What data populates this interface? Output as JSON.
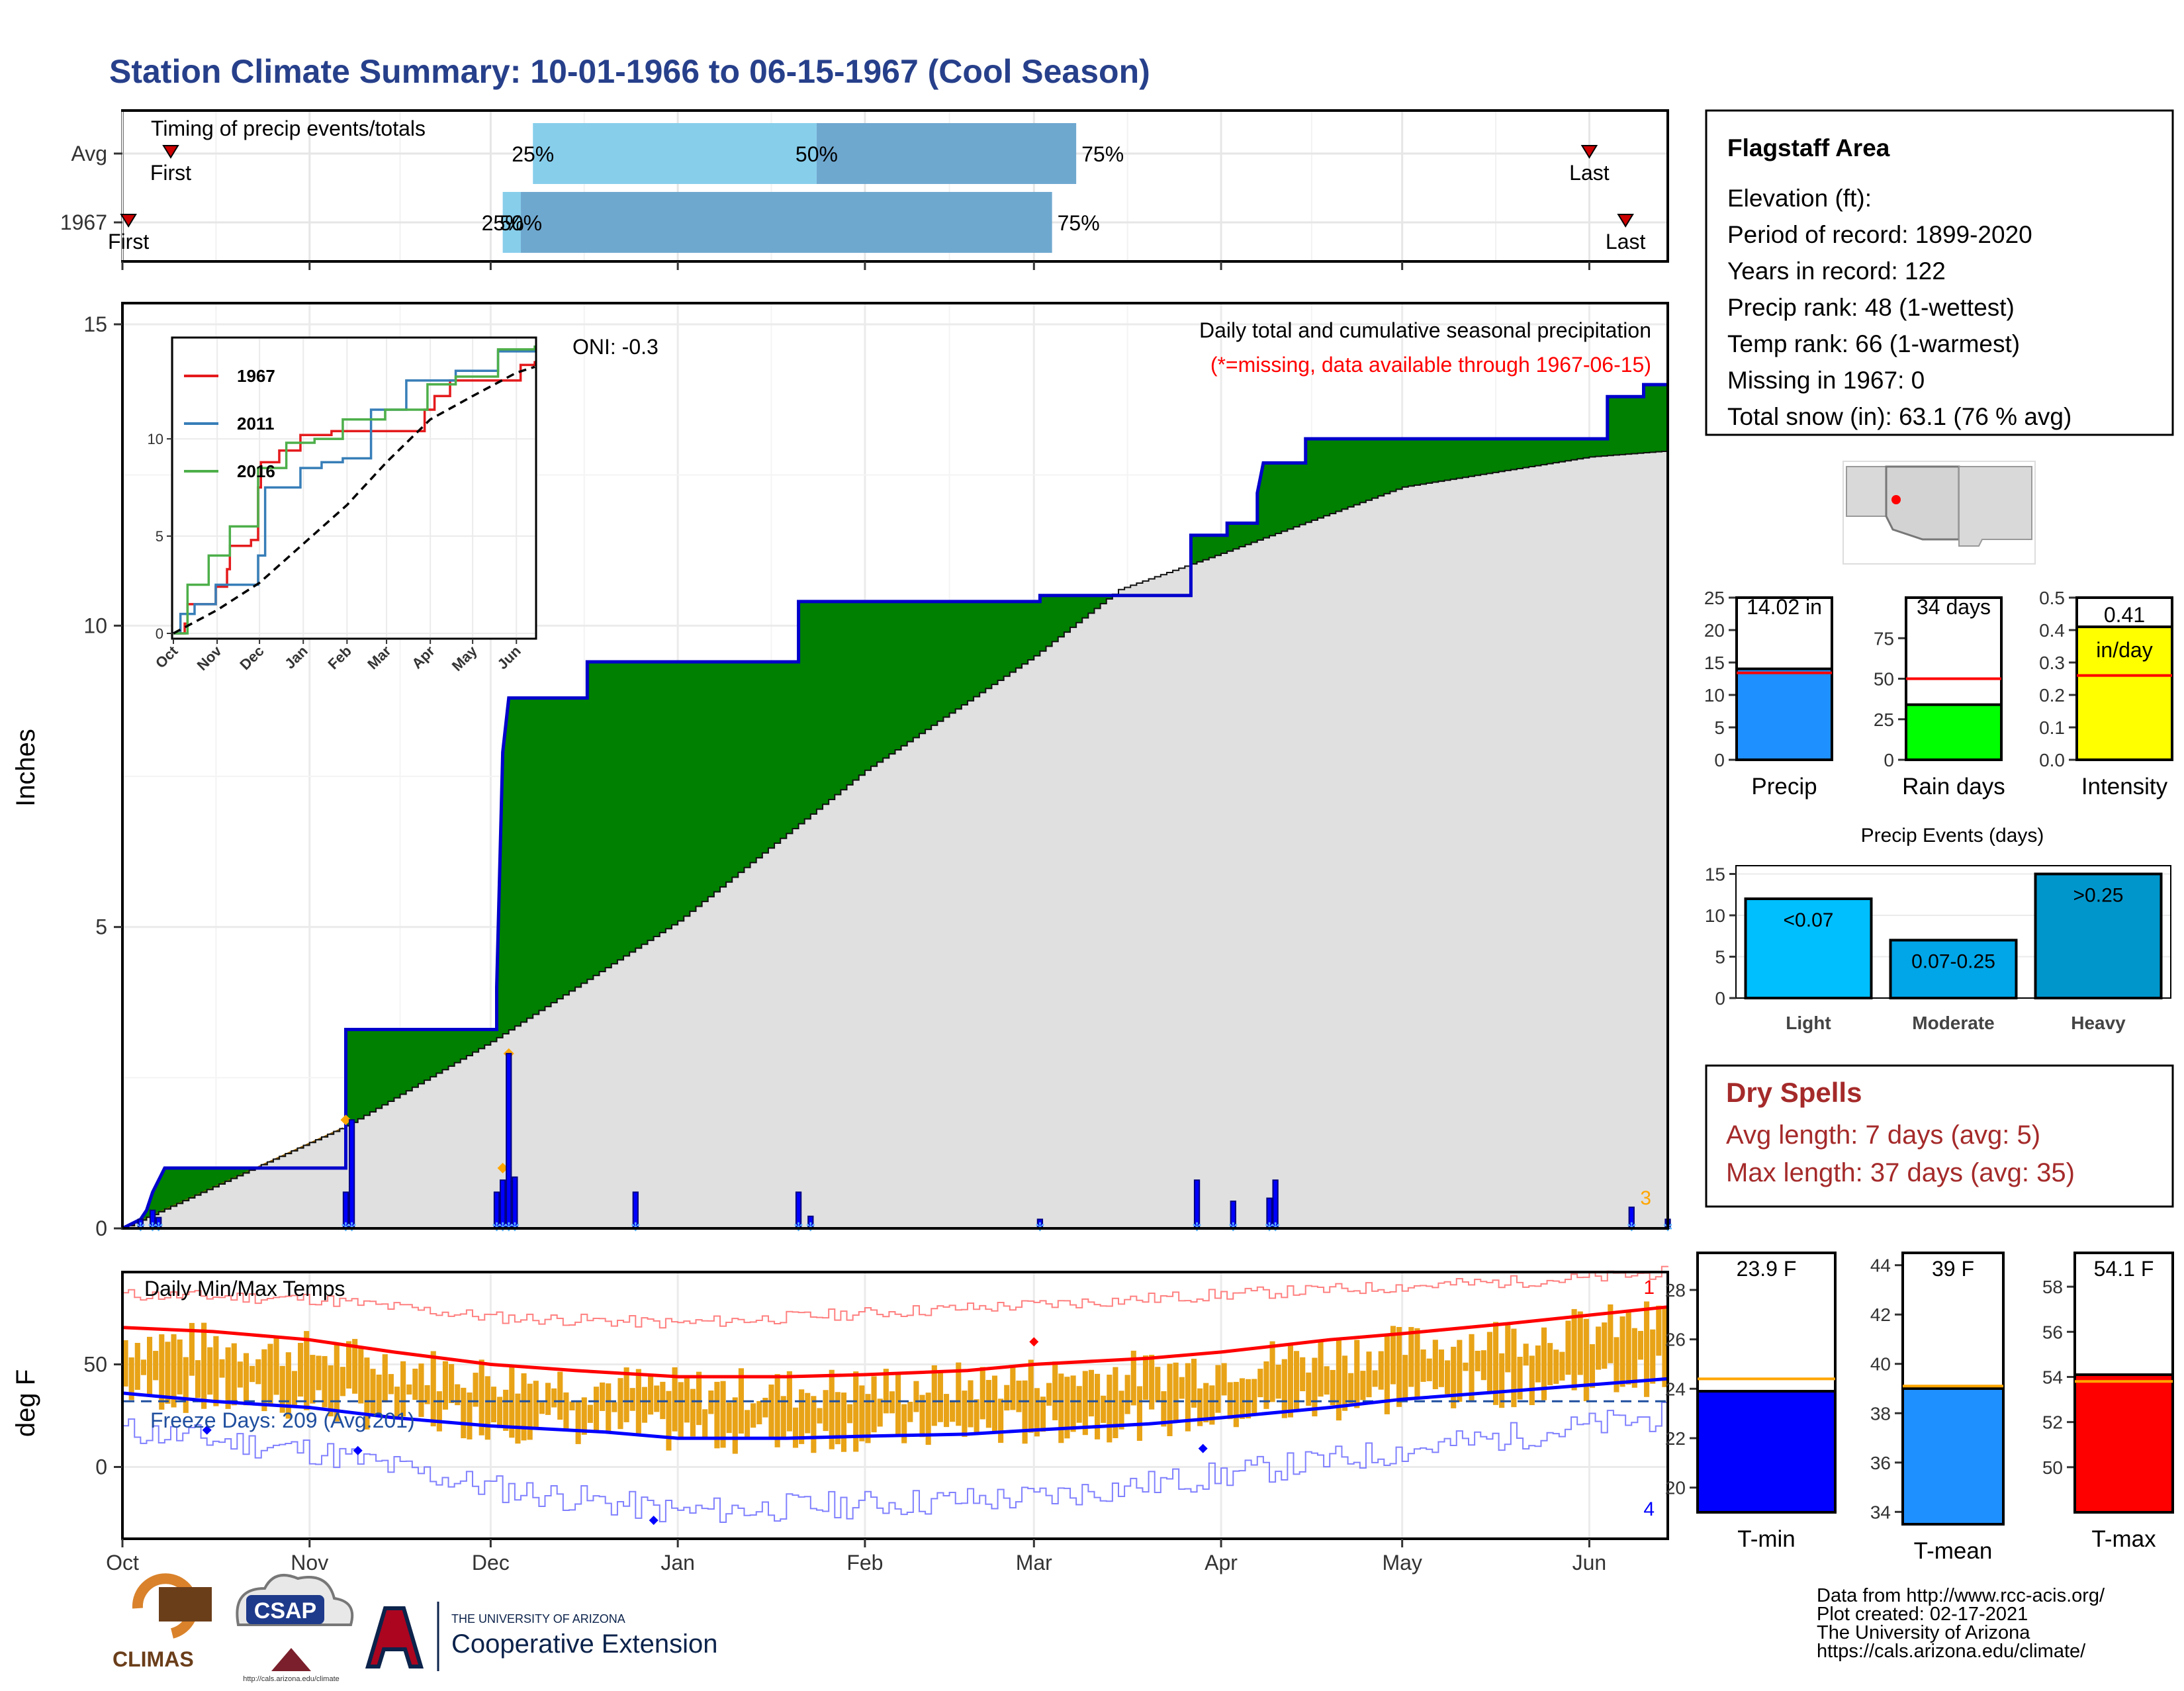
{
  "title": "Station Climate Summary: 10-01-1966 to 06-15-1967 (Cool Season)",
  "colors": {
    "title": "#27408b",
    "cum_fill": "#008000",
    "deficit_fill": "#8b5a00",
    "normal_fill": "#e0e0e0",
    "cum_line": "#0000cc",
    "daily_bar": "#0000ff",
    "temp_bar": "#e8a317",
    "tmax_avg": "#ff0000",
    "tmin_avg": "#0000ff",
    "dry_spell_text": "#a52a2a"
  },
  "timing": {
    "label": "Timing of precip events/totals",
    "row_labels": [
      "Avg",
      "1967"
    ],
    "avg": {
      "first_label": "First",
      "last_label": "Last",
      "p25_label": "25%",
      "p50_label": "50%",
      "p75_label": "75%",
      "first_day": 8,
      "p25_day": 68,
      "p50_day": 115,
      "p75_day": 158,
      "last_day": 243
    },
    "y1967": {
      "first_label": "First",
      "last_label": "Last",
      "p25_label": "25%",
      "p50_label": "50%",
      "p75_label": "75%",
      "first_day": 1,
      "p25_day": 63,
      "p50_day": 66,
      "p75_day": 154,
      "last_day": 249
    }
  },
  "months": [
    "Oct",
    "Nov",
    "Dec",
    "Jan",
    "Feb",
    "Mar",
    "Apr",
    "May",
    "Jun"
  ],
  "month_days": [
    0,
    31,
    61,
    92,
    123,
    151,
    182,
    212,
    243
  ],
  "main": {
    "ylabel": "Inches",
    "yticks": [
      "0",
      "5",
      "10",
      "15"
    ],
    "ylim": [
      0,
      15
    ],
    "oni": "ONI: -0.3",
    "subtitle": "Daily total and cumulative seasonal precipitation",
    "missing_note": "(*=missing, data available through 1967-06-15)",
    "corner_number": "3"
  },
  "chart_data": [
    {
      "type": "area",
      "x_unit": "days since Oct 1",
      "cumulative_1967": [
        [
          0,
          0
        ],
        [
          3,
          0.15
        ],
        [
          4,
          0.3
        ],
        [
          5,
          0.6
        ],
        [
          6,
          0.8
        ],
        [
          7,
          1.0
        ],
        [
          37,
          1.0
        ],
        [
          37,
          3.3
        ],
        [
          62,
          3.3
        ],
        [
          62,
          4.0
        ],
        [
          63,
          7.9
        ],
        [
          64,
          8.8
        ],
        [
          77,
          8.8
        ],
        [
          77,
          9.4
        ],
        [
          112,
          9.4
        ],
        [
          112,
          10.4
        ],
        [
          152,
          10.4
        ],
        [
          152,
          10.5
        ],
        [
          177,
          10.5
        ],
        [
          177,
          11.5
        ],
        [
          183,
          11.5
        ],
        [
          183,
          11.7
        ],
        [
          188,
          11.7
        ],
        [
          188,
          12.2
        ],
        [
          189,
          12.7
        ],
        [
          196,
          12.7
        ],
        [
          196,
          13.1
        ],
        [
          246,
          13.1
        ],
        [
          246,
          13.8
        ],
        [
          252,
          13.8
        ],
        [
          252,
          14.0
        ],
        [
          256,
          14.0
        ]
      ],
      "normal": [
        [
          0,
          0
        ],
        [
          37,
          1.7
        ],
        [
          61,
          3.1
        ],
        [
          92,
          5.1
        ],
        [
          123,
          7.6
        ],
        [
          151,
          9.5
        ],
        [
          165,
          10.6
        ],
        [
          182,
          11.2
        ],
        [
          212,
          12.3
        ],
        [
          243,
          12.8
        ],
        [
          256,
          12.9
        ]
      ],
      "daily_precip": [
        [
          3,
          0.15
        ],
        [
          5,
          0.3
        ],
        [
          6,
          0.18
        ],
        [
          37,
          0.6
        ],
        [
          38,
          1.8
        ],
        [
          62,
          0.6
        ],
        [
          63,
          0.8
        ],
        [
          64,
          2.9
        ],
        [
          65,
          0.85
        ],
        [
          85,
          0.6
        ],
        [
          112,
          0.6
        ],
        [
          114,
          0.2
        ],
        [
          152,
          0.15
        ],
        [
          178,
          0.8
        ],
        [
          184,
          0.45
        ],
        [
          190,
          0.5
        ],
        [
          191,
          0.8
        ],
        [
          250,
          0.35
        ],
        [
          256,
          0.15
        ]
      ]
    },
    {
      "type": "line",
      "title": "",
      "series": [
        {
          "name": "1967",
          "color": "#e41a1c",
          "points": [
            [
              0,
              0
            ],
            [
              8,
              0.5
            ],
            [
              10,
              1.5
            ],
            [
              30,
              2.4
            ],
            [
              38,
              3.3
            ],
            [
              40,
              4.5
            ],
            [
              55,
              4.8
            ],
            [
              60,
              7.5
            ],
            [
              62,
              8.8
            ],
            [
              75,
              9.4
            ],
            [
              90,
              10.2
            ],
            [
              112,
              10.4
            ],
            [
              150,
              10.4
            ],
            [
              178,
              11.5
            ],
            [
              185,
              12.2
            ],
            [
              196,
              13.0
            ],
            [
              246,
              13.8
            ],
            [
              256,
              14.0
            ]
          ]
        },
        {
          "name": "2011",
          "color": "#377eb8",
          "points": [
            [
              0,
              0
            ],
            [
              5,
              1.0
            ],
            [
              15,
              1.5
            ],
            [
              30,
              2.5
            ],
            [
              60,
              4.0
            ],
            [
              65,
              7.5
            ],
            [
              90,
              8.5
            ],
            [
              105,
              8.8
            ],
            [
              120,
              9.0
            ],
            [
              140,
              11.5
            ],
            [
              165,
              13.0
            ],
            [
              200,
              13.5
            ],
            [
              230,
              14.5
            ],
            [
              256,
              14.6
            ]
          ]
        },
        {
          "name": "2016",
          "color": "#4daf4a",
          "points": [
            [
              0,
              0
            ],
            [
              10,
              2.5
            ],
            [
              25,
              4.0
            ],
            [
              40,
              5.5
            ],
            [
              60,
              8.5
            ],
            [
              80,
              9.8
            ],
            [
              100,
              10.0
            ],
            [
              120,
              11.0
            ],
            [
              150,
              11.5
            ],
            [
              180,
              12.8
            ],
            [
              200,
              13.2
            ],
            [
              230,
              14.6
            ],
            [
              256,
              14.8
            ]
          ]
        },
        {
          "name": "avg",
          "color": "#000000",
          "points": [
            [
              0,
              0
            ],
            [
              31,
              1.2
            ],
            [
              61,
              2.6
            ],
            [
              92,
              4.6
            ],
            [
              123,
              6.6
            ],
            [
              151,
              8.8
            ],
            [
              182,
              11.0
            ],
            [
              212,
              12.2
            ],
            [
              243,
              13.4
            ],
            [
              256,
              13.7
            ]
          ]
        }
      ],
      "yticks": [
        "0",
        "5",
        "10"
      ],
      "ylim": [
        0,
        15
      ]
    },
    {
      "type": "bar",
      "title": "Daily Min/Max Temps",
      "ylabel": "deg F",
      "yticks": [
        "0",
        "50"
      ],
      "ylim": [
        -35,
        95
      ],
      "freeze_label": "Freeze Days: 209 (Avg:201)",
      "freeze_line": 32,
      "top_right_number": "1",
      "bottom_right_number": "4",
      "tmax_avg": [
        [
          0,
          68
        ],
        [
          15,
          66
        ],
        [
          31,
          62
        ],
        [
          45,
          56
        ],
        [
          61,
          50
        ],
        [
          75,
          47
        ],
        [
          92,
          44
        ],
        [
          110,
          44
        ],
        [
          123,
          45
        ],
        [
          140,
          47
        ],
        [
          151,
          50
        ],
        [
          170,
          53
        ],
        [
          182,
          56
        ],
        [
          200,
          62
        ],
        [
          212,
          65
        ],
        [
          230,
          70
        ],
        [
          243,
          74
        ],
        [
          256,
          78
        ]
      ],
      "tmin_avg": [
        [
          0,
          36
        ],
        [
          15,
          32
        ],
        [
          31,
          29
        ],
        [
          45,
          24
        ],
        [
          61,
          20
        ],
        [
          80,
          17
        ],
        [
          92,
          14
        ],
        [
          110,
          14
        ],
        [
          123,
          15
        ],
        [
          140,
          16
        ],
        [
          151,
          18
        ],
        [
          170,
          21
        ],
        [
          182,
          24
        ],
        [
          200,
          29
        ],
        [
          212,
          33
        ],
        [
          230,
          37
        ],
        [
          243,
          40
        ],
        [
          256,
          43
        ]
      ],
      "tmax_record_approx": [
        [
          0,
          84
        ],
        [
          31,
          82
        ],
        [
          61,
          73
        ],
        [
          92,
          70
        ],
        [
          123,
          75
        ],
        [
          151,
          79
        ],
        [
          182,
          84
        ],
        [
          212,
          88
        ],
        [
          243,
          92
        ],
        [
          256,
          95
        ]
      ],
      "tmin_record_approx": [
        [
          0,
          18
        ],
        [
          31,
          8
        ],
        [
          61,
          -10
        ],
        [
          92,
          -22
        ],
        [
          123,
          -18
        ],
        [
          151,
          -15
        ],
        [
          182,
          -4
        ],
        [
          212,
          8
        ],
        [
          243,
          20
        ],
        [
          256,
          25
        ]
      ],
      "extreme_markers": [
        [
          14,
          18,
          "#0000ff"
        ],
        [
          39,
          8,
          "#0000ff"
        ],
        [
          88,
          -26,
          "#0000ff"
        ],
        [
          179,
          9,
          "#0000ff"
        ],
        [
          151,
          61,
          "#ff0000"
        ]
      ]
    },
    {
      "type": "bar",
      "title": "Precip",
      "bar_label": "14.02 in",
      "value": 14.02,
      "avg": 13.4,
      "ylim": [
        0,
        25
      ],
      "yticks": [
        "0",
        "5",
        "10",
        "15",
        "20",
        "25"
      ]
    },
    {
      "type": "bar",
      "title": "Rain days",
      "bar_label": "34 days",
      "value": 34,
      "avg": 50,
      "ylim": [
        0,
        100
      ],
      "yticks": [
        "0",
        "25",
        "50",
        "75"
      ]
    },
    {
      "type": "bar",
      "title": "Intensity",
      "bar_label": "0.41",
      "unit_label": "in/day",
      "value": 0.41,
      "avg": 0.26,
      "ylim": [
        0,
        0.5
      ],
      "yticks": [
        "0.0",
        "0.1",
        "0.2",
        "0.3",
        "0.4",
        "0.5"
      ]
    },
    {
      "type": "bar",
      "title": "Precip Events (days)",
      "categories": [
        "Light",
        "Moderate",
        "Heavy"
      ],
      "bar_labels": [
        "<0.07",
        "0.07-0.25",
        ">0.25"
      ],
      "values": [
        12,
        7,
        15
      ],
      "ylim": [
        0,
        16
      ],
      "yticks": [
        "0",
        "5",
        "10",
        "15"
      ]
    },
    {
      "type": "bar",
      "title": "T-min",
      "bar_label": "23.9 F",
      "value": 23.9,
      "avg": 24.4,
      "ylim": [
        19,
        29.5
      ],
      "yticks": [
        "20",
        "22",
        "24",
        "26",
        "28"
      ]
    },
    {
      "type": "bar",
      "title": "T-mean",
      "bar_label": "39 F",
      "value": 39,
      "avg": 39.1,
      "ylim": [
        33.5,
        44.5
      ],
      "yticks": [
        "34",
        "36",
        "38",
        "40",
        "42",
        "44"
      ]
    },
    {
      "type": "bar",
      "title": "T-max",
      "bar_label": "54.1 F",
      "value": 54.1,
      "avg": 53.8,
      "ylim": [
        48,
        59.5
      ],
      "yticks": [
        "50",
        "52",
        "54",
        "56",
        "58"
      ]
    }
  ],
  "station": {
    "name": "Flagstaff Area",
    "lines": [
      "Elevation (ft):",
      "Period of record: 1899-2020",
      "Years in record: 122",
      "Precip rank: 48 (1-wettest)",
      "Temp rank: 66 (1-warmest)",
      "Missing in 1967: 0",
      "Total snow (in): 63.1 (76 % avg)"
    ]
  },
  "dry_spells": {
    "title": "Dry Spells",
    "avg": "Avg length: 7 days (avg: 5)",
    "max": "Max length: 37 days (avg: 35)"
  },
  "footer": {
    "lines": [
      "Data from http://www.rcc-acis.org/",
      "Plot created: 02-17-2021",
      "The University of Arizona",
      "https://cals.arizona.edu/climate/"
    ],
    "logos": {
      "climas": "CLIMAS",
      "csap": "CSAP",
      "csap_url": "http://cals.arizona.edu/climate",
      "ua_small": "THE UNIVERSITY OF ARIZONA",
      "ua_big": "Cooperative Extension"
    }
  }
}
